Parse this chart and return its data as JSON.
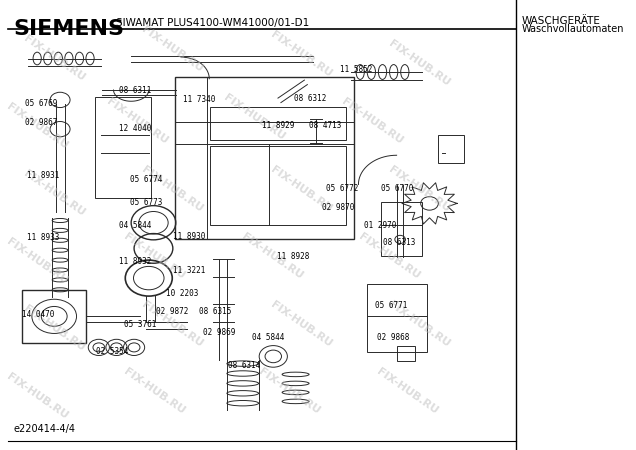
{
  "title_brand": "SIEMENS",
  "header_model": "SIWAMAT PLUS4100-WM41000/01-D1",
  "header_right_line1": "WASCHGERÄTE",
  "header_right_line2": "Waschvollautomaten",
  "footer_ref": "e220414-4/4",
  "watermark_text": "FIX-HUB.RU",
  "bg_color": "#ffffff",
  "line_color": "#000000"
}
